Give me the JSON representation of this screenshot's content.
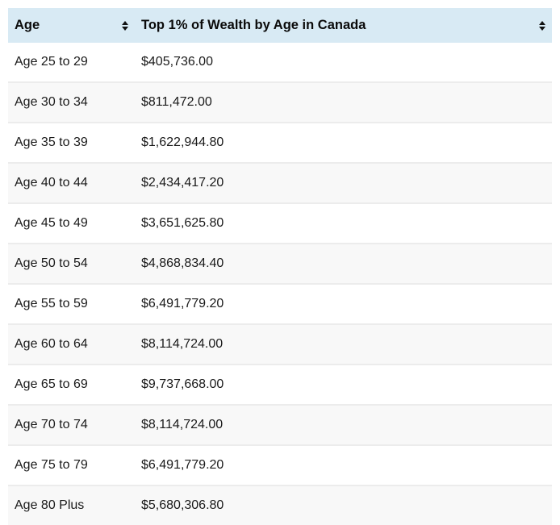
{
  "table": {
    "columns": [
      {
        "label": "Age",
        "sortable": true
      },
      {
        "label": "Top 1% of Wealth by Age in Canada",
        "sortable": true
      }
    ],
    "rows": [
      {
        "age": "Age 25 to 29",
        "value": "$405,736.00"
      },
      {
        "age": "Age 30 to 34",
        "value": "$811,472.00"
      },
      {
        "age": "Age 35 to 39",
        "value": "$1,622,944.80"
      },
      {
        "age": "Age 40 to 44",
        "value": "$2,434,417.20"
      },
      {
        "age": "Age 45 to 49",
        "value": "$3,651,625.80"
      },
      {
        "age": "Age 50 to 54",
        "value": "$4,868,834.40"
      },
      {
        "age": "Age 55 to 59",
        "value": "$6,491,779.20"
      },
      {
        "age": "Age 60 to 64",
        "value": "$8,114,724.00"
      },
      {
        "age": "Age 65 to 69",
        "value": "$9,737,668.00"
      },
      {
        "age": "Age 70 to 74",
        "value": "$8,114,724.00"
      },
      {
        "age": "Age 75 to 79",
        "value": "$6,491,779.20"
      },
      {
        "age": "Age 80 Plus",
        "value": "$5,680,306.80"
      }
    ],
    "colors": {
      "header_bg": "#d8eaf4",
      "row_alt_bg": "#f8f8f8",
      "row_border": "#ececec",
      "text": "#111111"
    }
  }
}
